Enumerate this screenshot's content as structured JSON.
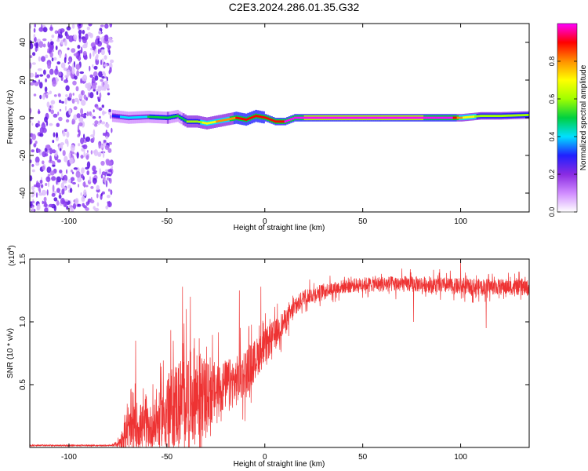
{
  "title": "C2E3.2024.286.01.35.G32",
  "chart_data": [
    {
      "type": "heatmap",
      "xlabel": "Height of straight line (km)",
      "ylabel": "Frequency (Hz)",
      "xlim": [
        -120,
        135
      ],
      "ylim": [
        -50,
        50
      ],
      "xticks": [
        -100,
        -50,
        0,
        50,
        100
      ],
      "yticks": [
        -40,
        -20,
        0,
        20,
        40
      ],
      "colorbar": {
        "label": "Normalized spectral amplitude",
        "range": [
          0,
          1
        ],
        "ticks": [
          "0.0",
          "0.2",
          "0.4",
          "0.6",
          "0.8"
        ],
        "colors": [
          "#ffffff",
          "#d08cff",
          "#8a2be2",
          "#2020ff",
          "#00e0ff",
          "#00d040",
          "#a0ff00",
          "#ffff00",
          "#ff9000",
          "#ff0000",
          "#ff00ff"
        ]
      },
      "noise_region_x": [
        -120,
        -78
      ],
      "noise_amplitude": 0.2,
      "ridge": {
        "description_values_only": true,
        "x": [
          -78,
          -70,
          -60,
          -50,
          -45,
          -40,
          -35,
          -30,
          -25,
          -20,
          -15,
          -10,
          -5,
          0,
          5,
          10,
          15,
          20,
          40,
          60,
          80,
          95,
          100,
          110,
          120,
          135
        ],
        "freq": [
          1,
          0,
          0.5,
          0,
          1,
          -2,
          -2,
          -3,
          -2,
          -1,
          0,
          -1,
          1,
          0,
          -2,
          -2,
          0,
          0,
          0,
          0,
          0,
          0,
          0,
          1,
          1,
          1.5
        ],
        "amplitude": [
          0.3,
          0.4,
          0.45,
          0.5,
          0.45,
          0.55,
          0.6,
          0.7,
          0.75,
          0.8,
          0.85,
          0.85,
          0.9,
          0.9,
          0.9,
          0.95,
          0.95,
          1.0,
          1.0,
          1.0,
          1.0,
          0.95,
          0.75,
          0.6,
          0.6,
          0.55
        ]
      }
    },
    {
      "type": "line",
      "xlabel": "Height of straight line (km)",
      "ylabel": "SNR (10 * v/v)",
      "yscale_label": "(x10",
      "yscale_exp": "4",
      "xlim": [
        -120,
        135
      ],
      "ylim": [
        0,
        1.5
      ],
      "xticks": [
        -100,
        -50,
        0,
        50,
        100
      ],
      "yticks": [
        "0.5",
        "1.0",
        "1.5"
      ],
      "ytick_values": [
        0.5,
        1.0,
        1.5
      ],
      "series": [
        {
          "color": "#ee3333",
          "envelope_x": [
            -120,
            -80,
            -75,
            -70,
            -65,
            -60,
            -55,
            -50,
            -45,
            -40,
            -35,
            -30,
            -25,
            -20,
            -15,
            -10,
            -5,
            0,
            5,
            10,
            15,
            20,
            25,
            30,
            40,
            50,
            60,
            80,
            100,
            120,
            135
          ],
          "baseline": [
            0.01,
            0.01,
            0.03,
            0.12,
            0.18,
            0.15,
            0.2,
            0.3,
            0.35,
            0.4,
            0.42,
            0.4,
            0.45,
            0.5,
            0.52,
            0.6,
            0.7,
            0.8,
            0.9,
            1.0,
            1.1,
            1.2,
            1.22,
            1.25,
            1.28,
            1.3,
            1.3,
            1.3,
            1.28,
            1.28,
            1.27
          ],
          "noise": [
            0.0,
            0.0,
            0.03,
            0.18,
            0.25,
            0.2,
            0.25,
            0.35,
            0.45,
            0.45,
            0.5,
            0.35,
            0.3,
            0.25,
            0.25,
            0.25,
            0.2,
            0.18,
            0.15,
            0.12,
            0.1,
            0.08,
            0.08,
            0.07,
            0.07,
            0.07,
            0.08,
            0.08,
            0.08,
            0.08,
            0.08
          ],
          "spikes": [
            [
              -66,
              0.85
            ],
            [
              -42,
              1.28
            ],
            [
              -38,
              1.2
            ],
            [
              -13,
              1.25
            ],
            [
              -2,
              1.28
            ],
            [
              100,
              1.5
            ],
            [
              76,
              1.0
            ],
            [
              113,
              0.95
            ]
          ]
        }
      ]
    }
  ]
}
